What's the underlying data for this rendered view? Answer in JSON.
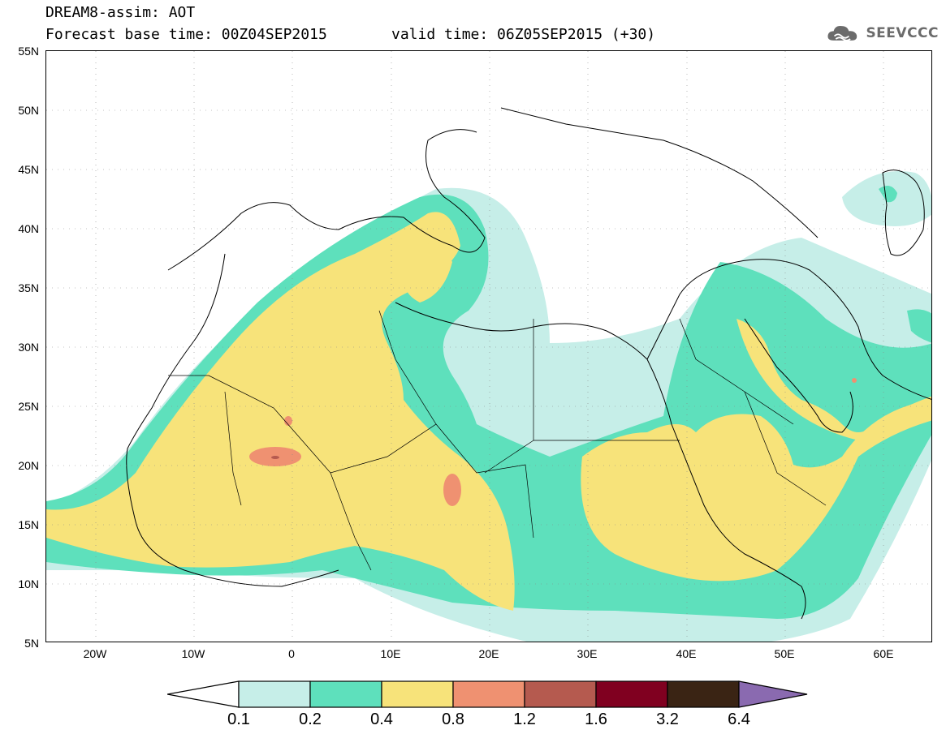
{
  "title": {
    "line1": "DREAM8-assim: AOT",
    "line2": "Forecast base time: 00Z04SEP2015",
    "valid": "valid time: 06Z05SEP2015 (+30)"
  },
  "logo": {
    "text": "SEEVCCC",
    "icon": "cloud-icon"
  },
  "colors": {
    "c01_02": "#c6eee8",
    "c02_04": "#5ee0bc",
    "c04_08": "#f7e37a",
    "c08_12": "#ef9171",
    "c12_16": "#b55a4f",
    "c16_32": "#800020",
    "c32_64": "#3a2414",
    "c64_plus": "#8a6ab0",
    "below": "#ffffff",
    "land_lines": "#000000"
  },
  "map": {
    "lon_range": [
      -25,
      65
    ],
    "lat_range": [
      5,
      55
    ],
    "y_labels": [
      "55N",
      "50N",
      "45N",
      "40N",
      "35N",
      "30N",
      "25N",
      "20N",
      "15N",
      "10N",
      "5N"
    ],
    "x_labels": [
      "20W",
      "10W",
      "0",
      "10E",
      "20E",
      "30E",
      "40E",
      "50E",
      "60E"
    ]
  },
  "colorbar": {
    "labels": [
      "0.1",
      "0.2",
      "0.4",
      "0.8",
      "1.2",
      "1.6",
      "3.2",
      "6.4"
    ]
  }
}
